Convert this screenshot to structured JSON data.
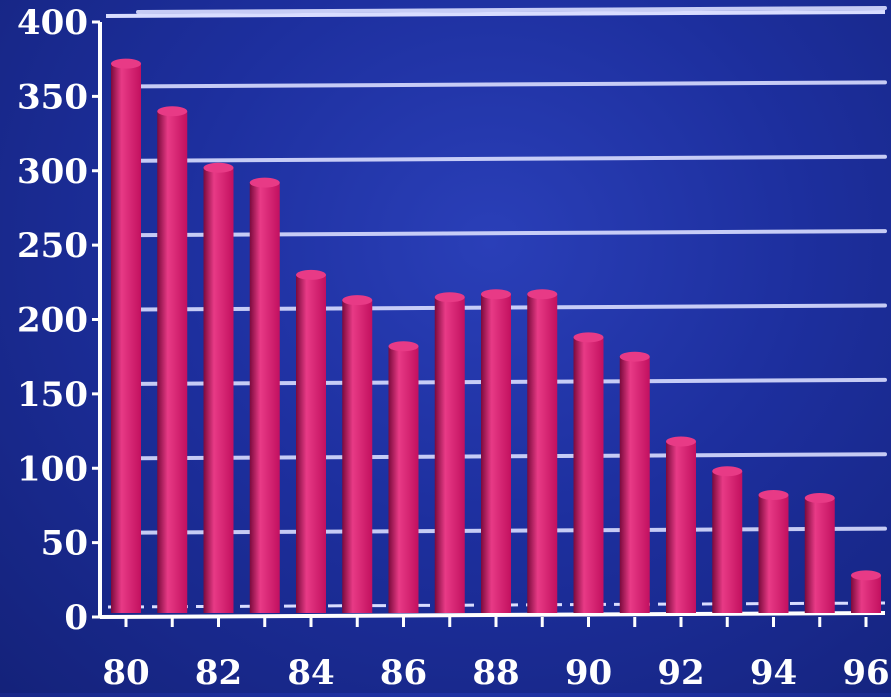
{
  "chart_data": {
    "type": "bar",
    "categories": [
      "80",
      "81",
      "82",
      "83",
      "84",
      "85",
      "86",
      "87",
      "88",
      "89",
      "90",
      "91",
      "92",
      "93",
      "94",
      "95",
      "96"
    ],
    "values": [
      372,
      340,
      302,
      292,
      230,
      213,
      182,
      215,
      217,
      217,
      188,
      175,
      118,
      98,
      82,
      80,
      28
    ],
    "x_tick_labels": [
      "80",
      "82",
      "84",
      "86",
      "88",
      "90",
      "92",
      "94",
      "96"
    ],
    "y_tick_labels": [
      "0",
      "50",
      "100",
      "150",
      "200",
      "250",
      "300",
      "350",
      "400"
    ],
    "title": "",
    "xlabel": "",
    "ylabel": "",
    "ylim": [
      0,
      400
    ],
    "grid": true,
    "legend": "none",
    "colors": {
      "bar": "#c2105f",
      "bar_highlight": "#e83a86",
      "bar_shadow": "#7a0a3c",
      "grid": "#d9ddff",
      "axis": "#ffffff",
      "background": "#1d2f9e"
    }
  }
}
